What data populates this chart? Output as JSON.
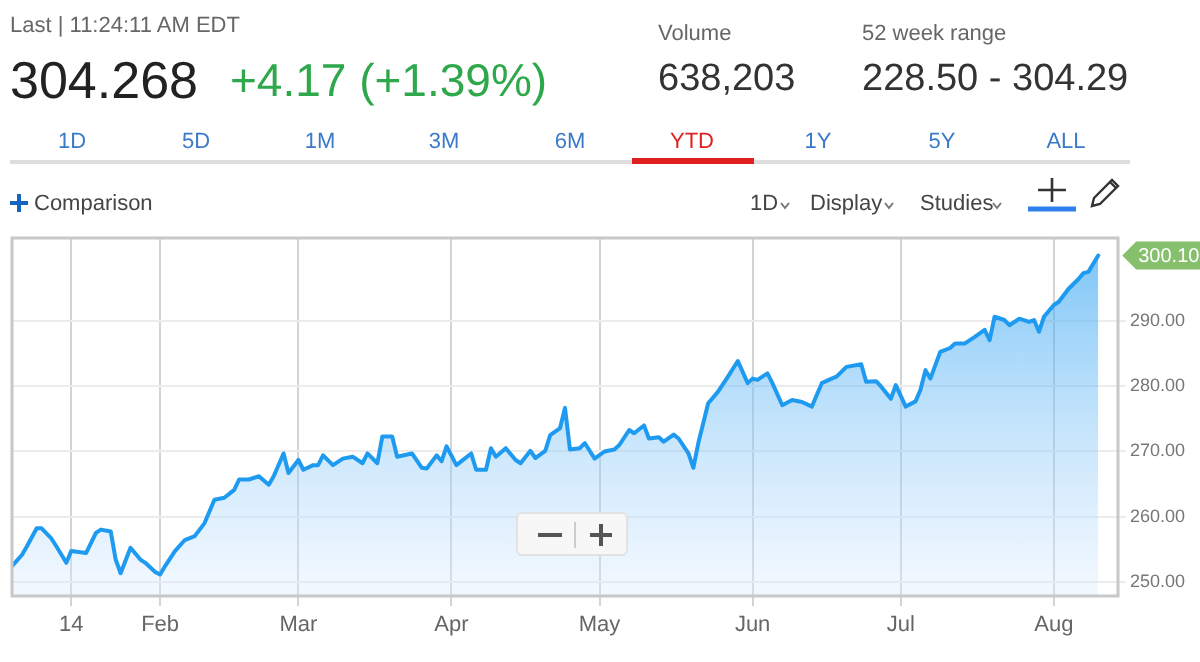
{
  "chart_data": {
    "type": "area",
    "annotations": [
      "Last | 11:24:11 AM EDT",
      "304.268",
      "+4.17 (+1.39%)",
      "Volume",
      "638,203",
      "52 week range",
      "228.50 - 304.29",
      "1D",
      "5D",
      "1M",
      "3M",
      "6M",
      "YTD",
      "1Y",
      "5Y",
      "ALL",
      "Comparison",
      "1D",
      "Display",
      "Studies",
      {
        "text": "300.10",
        "x": "--08-10",
        "y": 300.1
      }
    ],
    "series": [
      {
        "color": "#1e9bf0",
        "x": [
          "--01-02",
          "--01-04",
          "--01-05",
          "--01-07",
          "--01-08",
          "--01-10",
          "--01-11",
          "--01-13",
          "--01-14",
          "--01-17",
          "--01-19",
          "--01-20",
          "--01-22",
          "--01-23",
          "--01-24",
          "--01-26",
          "--01-28",
          "--01-29",
          "--01-31",
          "--02-01",
          "--02-02",
          "--02-04",
          "--02-06",
          "--02-08",
          "--02-10",
          "--02-12",
          "--02-14",
          "--02-16",
          "--02-17",
          "--02-19",
          "--02-21",
          "--02-23",
          "--02-24",
          "--02-26",
          "--02-27",
          "--03-01",
          "--03-02",
          "--03-04",
          "--03-05",
          "--03-06",
          "--03-08",
          "--03-10",
          "--03-12",
          "--03-14",
          "--03-15",
          "--03-17",
          "--03-18",
          "--03-20",
          "--03-21",
          "--03-24",
          "--03-26",
          "--03-27",
          "--03-29",
          "--03-30",
          "--03-31",
          "--04-02",
          "--04-05",
          "--04-06",
          "--04-08",
          "--04-09",
          "--04-10",
          "--04-12",
          "--04-14",
          "--04-15",
          "--04-17",
          "--04-18",
          "--04-20",
          "--04-21",
          "--04-23",
          "--04-24",
          "--04-25",
          "--04-27",
          "--04-28",
          "--04-30",
          "--05-02",
          "--05-04",
          "--05-05",
          "--05-07",
          "--05-08",
          "--05-10",
          "--05-11",
          "--05-13",
          "--05-14",
          "--05-16",
          "--05-17",
          "--05-19",
          "--05-20",
          "--05-21",
          "--05-23",
          "--05-25",
          "--05-27",
          "--05-29",
          "--05-31",
          "--06-01",
          "--06-02",
          "--06-04",
          "--06-05",
          "--06-07",
          "--06-09",
          "--06-11",
          "--06-13",
          "--06-15",
          "--06-17",
          "--06-18",
          "--06-20",
          "--06-23",
          "--06-24",
          "--06-26",
          "--06-27",
          "--06-29",
          "--06-30",
          "--07-02",
          "--07-04",
          "--07-05",
          "--07-06",
          "--07-07",
          "--07-09",
          "--07-11",
          "--07-12",
          "--07-14",
          "--07-16",
          "--07-18",
          "--07-19",
          "--07-20",
          "--07-22",
          "--07-23",
          "--07-25",
          "--07-27",
          "--07-28",
          "--07-29",
          "--07-30",
          "--08-01",
          "--08-02",
          "--08-04",
          "--08-06",
          "--08-07",
          "--08-08",
          "--08-10"
        ],
        "values": [
          252.4,
          254.1,
          255.4,
          258.2,
          258.2,
          256.6,
          255.4,
          252.9,
          254.7,
          254.4,
          257.5,
          258.0,
          257.7,
          253.4,
          251.3,
          255.2,
          253.4,
          252.9,
          251.5,
          251.1,
          252.4,
          254.7,
          256.4,
          257.0,
          259.0,
          262.6,
          262.9,
          264.1,
          265.7,
          265.7,
          266.2,
          264.9,
          266.2,
          269.7,
          266.7,
          268.7,
          267.2,
          267.9,
          267.9,
          269.4,
          267.9,
          268.9,
          269.2,
          268.2,
          269.7,
          268.2,
          272.3,
          272.3,
          269.2,
          269.7,
          267.5,
          267.4,
          269.4,
          268.5,
          270.8,
          267.9,
          269.7,
          267.2,
          267.2,
          270.5,
          269.2,
          270.5,
          268.7,
          268.2,
          270.1,
          269.0,
          270.1,
          272.5,
          273.6,
          276.7,
          270.3,
          270.5,
          271.3,
          268.9,
          270.0,
          270.3,
          271.0,
          273.3,
          272.8,
          274.0,
          272.0,
          272.2,
          271.5,
          272.6,
          272.0,
          269.7,
          267.5,
          271.3,
          277.4,
          279.2,
          281.5,
          283.9,
          280.5,
          281.2,
          281.0,
          282.0,
          280.5,
          277.1,
          277.9,
          277.6,
          276.9,
          280.5,
          281.2,
          281.5,
          283.0,
          283.4,
          280.7,
          280.8,
          280.0,
          278.1,
          280.2,
          276.9,
          277.7,
          279.5,
          282.5,
          281.2,
          285.3,
          285.9,
          286.6,
          286.6,
          287.6,
          288.7,
          287.1,
          290.7,
          290.2,
          289.4,
          290.4,
          289.9,
          290.2,
          288.4,
          290.7,
          292.5,
          293.0,
          295.0,
          296.5,
          297.4,
          297.6,
          300.1
        ]
      }
    ],
    "xlim": [
      "--01-02",
      "--08-14"
    ],
    "xticks": [
      {
        "value": "--01-14",
        "label": "14"
      },
      {
        "value": "--02-01",
        "label": "Feb"
      },
      {
        "value": "--03-01",
        "label": "Mar"
      },
      {
        "value": "--04-01",
        "label": "Apr"
      },
      {
        "value": "--05-01",
        "label": "May"
      },
      {
        "value": "--06-01",
        "label": "Jun"
      },
      {
        "value": "--07-01",
        "label": "Jul"
      },
      {
        "value": "--08-01",
        "label": "Aug"
      }
    ],
    "ylim": [
      247.8,
      302.8
    ],
    "yticks": [
      {
        "value": 250,
        "label": "250.00"
      },
      {
        "value": 260,
        "label": "260.00"
      },
      {
        "value": 270,
        "label": "270.00"
      },
      {
        "value": 280,
        "label": "280.00"
      },
      {
        "value": 290,
        "label": "290.00"
      }
    ],
    "grid": true,
    "legend": false,
    "marker": "none",
    "line_style": "solid"
  }
}
